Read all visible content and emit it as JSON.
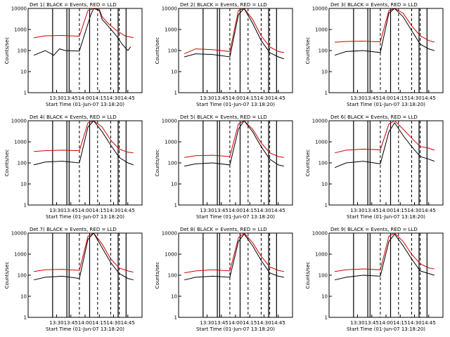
{
  "chart_data": {
    "type": "line",
    "panels": [
      {
        "title": "Det 1( BLACK = Events, RED = LLD",
        "events": [
          [
            13.1,
            60
          ],
          [
            13.3,
            100
          ],
          [
            13.45,
            60
          ],
          [
            13.55,
            120
          ],
          [
            13.65,
            100
          ],
          [
            13.9,
            95
          ],
          [
            14.1,
            5000
          ],
          [
            14.15,
            10000
          ],
          [
            14.25,
            8000
          ],
          [
            14.3,
            3000
          ],
          [
            14.4,
            1500
          ],
          [
            14.55,
            500
          ],
          [
            14.65,
            200
          ],
          [
            14.75,
            100
          ],
          [
            14.8,
            150
          ]
        ],
        "lld": [
          [
            13.1,
            400
          ],
          [
            13.3,
            500
          ],
          [
            13.6,
            520
          ],
          [
            13.9,
            480
          ],
          [
            14.05,
            8000
          ],
          [
            14.15,
            10000
          ],
          [
            14.25,
            9000
          ],
          [
            14.3,
            4000
          ],
          [
            14.4,
            2000
          ],
          [
            14.55,
            900
          ],
          [
            14.7,
            500
          ],
          [
            14.85,
            400
          ]
        ]
      },
      {
        "title": "Det 2( BLACK = Events, RED = LLD",
        "events": [
          [
            13.1,
            50
          ],
          [
            13.3,
            70
          ],
          [
            13.6,
            65
          ],
          [
            13.9,
            50
          ],
          [
            14.05,
            5000
          ],
          [
            14.15,
            10000
          ],
          [
            14.3,
            2000
          ],
          [
            14.45,
            300
          ],
          [
            14.6,
            80
          ],
          [
            14.75,
            50
          ],
          [
            14.85,
            40
          ]
        ],
        "lld": [
          [
            13.1,
            70
          ],
          [
            13.3,
            120
          ],
          [
            13.6,
            110
          ],
          [
            13.9,
            90
          ],
          [
            14.05,
            8000
          ],
          [
            14.15,
            10000
          ],
          [
            14.3,
            3000
          ],
          [
            14.45,
            500
          ],
          [
            14.6,
            150
          ],
          [
            14.75,
            90
          ],
          [
            14.85,
            80
          ]
        ]
      },
      {
        "title": "Det 3( BLACK = Events, RED = LLD",
        "events": [
          [
            13.1,
            60
          ],
          [
            13.3,
            90
          ],
          [
            13.6,
            100
          ],
          [
            13.9,
            80
          ],
          [
            14.05,
            6000
          ],
          [
            14.15,
            10000
          ],
          [
            14.3,
            4000
          ],
          [
            14.45,
            900
          ],
          [
            14.6,
            200
          ],
          [
            14.75,
            120
          ],
          [
            14.85,
            100
          ]
        ],
        "lld": [
          [
            13.1,
            250
          ],
          [
            13.3,
            270
          ],
          [
            13.6,
            280
          ],
          [
            13.9,
            260
          ],
          [
            14.05,
            8000
          ],
          [
            14.15,
            10000
          ],
          [
            14.3,
            6000
          ],
          [
            14.45,
            1500
          ],
          [
            14.6,
            500
          ],
          [
            14.75,
            300
          ],
          [
            14.85,
            250
          ]
        ]
      },
      {
        "title": "Det 4( BLACK = Events, RED = LLD",
        "events": [
          [
            13.1,
            80
          ],
          [
            13.3,
            110
          ],
          [
            13.6,
            120
          ],
          [
            13.9,
            100
          ],
          [
            14.05,
            5000
          ],
          [
            14.15,
            10000
          ],
          [
            14.3,
            3000
          ],
          [
            14.45,
            700
          ],
          [
            14.6,
            180
          ],
          [
            14.75,
            100
          ],
          [
            14.85,
            80
          ]
        ],
        "lld": [
          [
            13.1,
            350
          ],
          [
            13.3,
            380
          ],
          [
            13.6,
            400
          ],
          [
            13.9,
            380
          ],
          [
            14.05,
            8000
          ],
          [
            14.15,
            10000
          ],
          [
            14.3,
            5000
          ],
          [
            14.45,
            1200
          ],
          [
            14.6,
            450
          ],
          [
            14.75,
            320
          ],
          [
            14.85,
            300
          ]
        ]
      },
      {
        "title": "Det 5( BLACK = Events, RED = LLD",
        "events": [
          [
            13.1,
            70
          ],
          [
            13.3,
            90
          ],
          [
            13.6,
            100
          ],
          [
            13.9,
            80
          ],
          [
            14.05,
            4000
          ],
          [
            14.15,
            10000
          ],
          [
            14.3,
            3000
          ],
          [
            14.45,
            600
          ],
          [
            14.6,
            150
          ],
          [
            14.75,
            80
          ],
          [
            14.85,
            70
          ]
        ],
        "lld": [
          [
            13.1,
            180
          ],
          [
            13.3,
            220
          ],
          [
            13.6,
            230
          ],
          [
            13.9,
            200
          ],
          [
            14.05,
            7000
          ],
          [
            14.15,
            10000
          ],
          [
            14.3,
            4000
          ],
          [
            14.45,
            900
          ],
          [
            14.6,
            300
          ],
          [
            14.75,
            200
          ],
          [
            14.85,
            180
          ]
        ]
      },
      {
        "title": "Det 6( BLACK = Events, RED = LLD",
        "events": [
          [
            13.1,
            60
          ],
          [
            13.3,
            100
          ],
          [
            13.6,
            120
          ],
          [
            13.9,
            90
          ],
          [
            14.05,
            3000
          ],
          [
            14.15,
            8000
          ],
          [
            14.3,
            2000
          ],
          [
            14.45,
            600
          ],
          [
            14.6,
            200
          ],
          [
            14.75,
            150
          ],
          [
            14.85,
            120
          ]
        ],
        "lld": [
          [
            13.1,
            300
          ],
          [
            13.3,
            400
          ],
          [
            13.6,
            450
          ],
          [
            13.9,
            420
          ],
          [
            14.05,
            7000
          ],
          [
            14.15,
            10000
          ],
          [
            14.3,
            4000
          ],
          [
            14.45,
            1500
          ],
          [
            14.6,
            600
          ],
          [
            14.75,
            500
          ],
          [
            14.85,
            400
          ]
        ]
      },
      {
        "title": "Det 7( BLACK = Events, RED = LLD",
        "events": [
          [
            13.1,
            60
          ],
          [
            13.3,
            80
          ],
          [
            13.6,
            90
          ],
          [
            13.9,
            70
          ],
          [
            14.05,
            5000
          ],
          [
            14.15,
            10000
          ],
          [
            14.3,
            2000
          ],
          [
            14.45,
            400
          ],
          [
            14.6,
            120
          ],
          [
            14.75,
            70
          ],
          [
            14.85,
            60
          ]
        ],
        "lld": [
          [
            13.1,
            150
          ],
          [
            13.3,
            180
          ],
          [
            13.6,
            190
          ],
          [
            13.9,
            170
          ],
          [
            14.05,
            7000
          ],
          [
            14.15,
            10000
          ],
          [
            14.3,
            3000
          ],
          [
            14.45,
            600
          ],
          [
            14.6,
            220
          ],
          [
            14.75,
            160
          ],
          [
            14.85,
            140
          ]
        ]
      },
      {
        "title": "Det 8( BLACK = Events, RED = LLD",
        "events": [
          [
            13.1,
            60
          ],
          [
            13.3,
            80
          ],
          [
            13.6,
            90
          ],
          [
            13.9,
            80
          ],
          [
            14.05,
            4000
          ],
          [
            14.15,
            9000
          ],
          [
            14.3,
            2500
          ],
          [
            14.45,
            500
          ],
          [
            14.6,
            130
          ],
          [
            14.75,
            90
          ],
          [
            14.85,
            80
          ]
        ],
        "lld": [
          [
            13.1,
            130
          ],
          [
            13.3,
            160
          ],
          [
            13.6,
            180
          ],
          [
            13.9,
            160
          ],
          [
            14.05,
            6000
          ],
          [
            14.15,
            10000
          ],
          [
            14.3,
            3500
          ],
          [
            14.45,
            800
          ],
          [
            14.6,
            250
          ],
          [
            14.75,
            170
          ],
          [
            14.85,
            150
          ]
        ]
      },
      {
        "title": "Det 9( BLACK = Events, RED = LLD",
        "events": [
          [
            13.1,
            60
          ],
          [
            13.3,
            80
          ],
          [
            13.6,
            100
          ],
          [
            13.9,
            90
          ],
          [
            14.05,
            4000
          ],
          [
            14.15,
            9000
          ],
          [
            14.3,
            2500
          ],
          [
            14.45,
            600
          ],
          [
            14.6,
            160
          ],
          [
            14.75,
            120
          ],
          [
            14.85,
            100
          ]
        ],
        "lld": [
          [
            13.1,
            150
          ],
          [
            13.3,
            180
          ],
          [
            13.6,
            200
          ],
          [
            13.9,
            180
          ],
          [
            14.05,
            7000
          ],
          [
            14.15,
            10000
          ],
          [
            14.3,
            4000
          ],
          [
            14.45,
            1000
          ],
          [
            14.6,
            350
          ],
          [
            14.75,
            220
          ],
          [
            14.85,
            200
          ]
        ]
      }
    ],
    "xlabel": "Start Time (01-Jun-07 13:18:20)",
    "ylabel": "Counts/sec",
    "xticks": [
      "13:30",
      "13:45",
      "14:00",
      "14:15",
      "14:30",
      "14:45"
    ],
    "yticks": [
      "1",
      "10",
      "100",
      "1000",
      "10000"
    ],
    "ylim": [
      1,
      10000
    ],
    "yscale": "log",
    "series_colors": {
      "events": "#000000",
      "lld": "#d00000"
    },
    "solid_markers": [
      13.43,
      13.68,
      13.72,
      14.08,
      14.58,
      14.72
    ],
    "dashed_markers": [
      13.9,
      14.22,
      14.45,
      14.6
    ]
  }
}
